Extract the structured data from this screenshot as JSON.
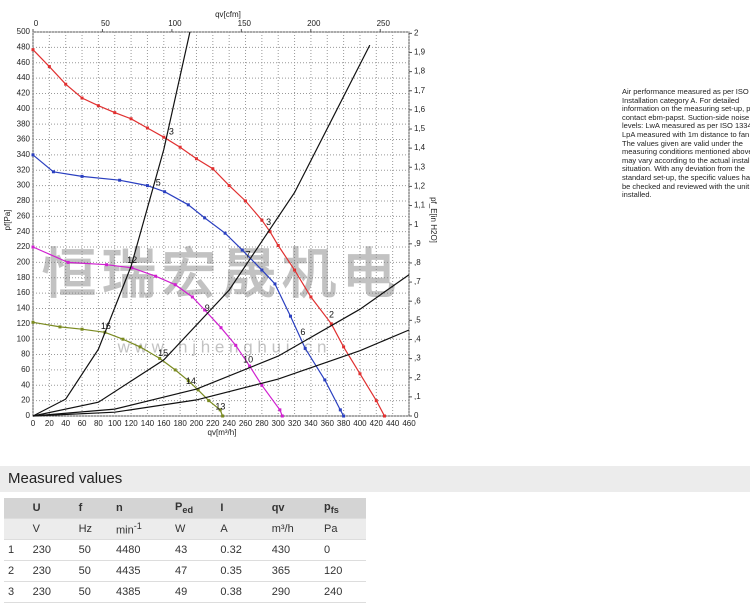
{
  "chart_data": {
    "type": "line",
    "xlabel": "qv[m³/h]",
    "ylabel": "pf[Pa]",
    "x2label": "qv[cfm]",
    "y2label": "pf_E[in H2O]",
    "xlim": [
      0,
      460
    ],
    "xticks": [
      0,
      20,
      40,
      60,
      80,
      100,
      120,
      140,
      160,
      180,
      200,
      220,
      240,
      260,
      280,
      300,
      320,
      340,
      360,
      380,
      400,
      420,
      440,
      460
    ],
    "ylim": [
      0,
      500
    ],
    "yticks": [
      0,
      20,
      40,
      60,
      80,
      100,
      120,
      140,
      160,
      180,
      200,
      220,
      240,
      260,
      280,
      300,
      320,
      340,
      360,
      380,
      400,
      420,
      440,
      460,
      480,
      500
    ],
    "x2lim": [
      0,
      270.7
    ],
    "x2ticks": [
      0,
      50,
      100,
      150,
      200,
      250
    ],
    "y2lim": [
      0,
      2.007
    ],
    "y2ticks": [
      0,
      {
        "value": 0.1,
        "label": ",1"
      },
      {
        "value": 0.2,
        "label": ",2"
      },
      {
        "value": 0.3,
        "label": ",3"
      },
      {
        "value": 0.4,
        "label": ",4"
      },
      {
        "value": 0.5,
        "label": ",5"
      },
      {
        "value": 0.6,
        "label": ",6"
      },
      {
        "value": 0.7,
        "label": ",7"
      },
      {
        "value": 0.8,
        "label": ",8"
      },
      {
        "value": 0.9,
        "label": ",9"
      },
      1,
      {
        "value": 1.1,
        "label": "1,1"
      },
      {
        "value": 1.2,
        "label": "1,2"
      },
      {
        "value": 1.3,
        "label": "1,3"
      },
      {
        "value": 1.4,
        "label": "1,4"
      },
      {
        "value": 1.5,
        "label": "1,5"
      },
      {
        "value": 1.6,
        "label": "1,6"
      },
      {
        "value": 1.7,
        "label": "1,7"
      },
      {
        "value": 1.8,
        "label": "1,8"
      },
      {
        "value": 1.9,
        "label": "1,9"
      },
      2
    ],
    "grid": true,
    "series": [
      {
        "color": "#e03030",
        "x": [
          0,
          20,
          40,
          60,
          80,
          100,
          120,
          140,
          160,
          180,
          200,
          220,
          240,
          260,
          280,
          290,
          300,
          320,
          340,
          365,
          380,
          400,
          420,
          430
        ],
        "values": [
          477,
          455,
          432,
          414,
          404,
          395,
          387,
          375,
          363,
          350,
          335,
          322,
          300,
          280,
          255,
          240,
          222,
          190,
          155,
          120,
          90,
          55,
          20,
          0
        ]
      },
      {
        "color": "#2a3fc0",
        "x": [
          0,
          25,
          60,
          106,
          140,
          161,
          190,
          210,
          235,
          256,
          280,
          296,
          315,
          333,
          357,
          376,
          380
        ],
        "values": [
          340,
          318,
          312,
          307,
          300,
          292,
          275,
          258,
          238,
          216,
          190,
          172,
          130,
          88,
          47,
          8,
          0
        ]
      },
      {
        "color": "#d020d0",
        "x": [
          0,
          43,
          90,
          121,
          150,
          174,
          195,
          210,
          230,
          248,
          265,
          280,
          302,
          305
        ],
        "values": [
          220,
          200,
          197,
          193,
          182,
          171,
          155,
          138,
          115,
          92,
          65,
          40,
          8,
          0
        ]
      },
      {
        "color": "#7a8a20",
        "x": [
          0,
          33,
          60,
          88,
          110,
          131,
          155,
          174,
          190,
          202,
          215,
          229,
          232
        ],
        "values": [
          122,
          116,
          113,
          109,
          100,
          90,
          75,
          60,
          46,
          34,
          20,
          8,
          0
        ]
      },
      {
        "color": "#111111",
        "x": [
          0,
          40,
          80,
          120,
          160,
          192
        ],
        "values": [
          0,
          22,
          87,
          195,
          347,
          500
        ]
      },
      {
        "color": "#111111",
        "x": [
          0,
          80,
          160,
          240,
          320,
          412
        ],
        "values": [
          0,
          18,
          73,
          164,
          291,
          483
        ]
      },
      {
        "color": "#111111",
        "x": [
          0,
          100,
          200,
          300,
          400,
          460
        ],
        "values": [
          0,
          9,
          35,
          78,
          139,
          184
        ]
      },
      {
        "color": "#111111",
        "x": [
          0,
          100,
          200,
          300,
          400,
          460
        ],
        "values": [
          0,
          5,
          21,
          48,
          85,
          112
        ]
      }
    ],
    "annotations": [
      {
        "text": "2",
        "x": 364,
        "y": 125
      },
      {
        "text": "3",
        "x": 287,
        "y": 245
      },
      {
        "text": "3",
        "x": 168,
        "y": 363
      },
      {
        "text": "5",
        "x": 152,
        "y": 297
      },
      {
        "text": "6",
        "x": 329,
        "y": 102
      },
      {
        "text": "7",
        "x": 262,
        "y": 203
      },
      {
        "text": "9",
        "x": 212,
        "y": 133
      },
      {
        "text": "10",
        "x": 262,
        "y": 66
      },
      {
        "text": "12",
        "x": 120,
        "y": 196
      },
      {
        "text": "13",
        "x": 228,
        "y": 5
      },
      {
        "text": "14",
        "x": 192,
        "y": 38
      },
      {
        "text": "15",
        "x": 158,
        "y": 75
      },
      {
        "text": "16",
        "x": 88,
        "y": 110
      }
    ],
    "watermark": [
      "恒瑞宏晟机电",
      "w w w . h j h e n g h u i . c n"
    ]
  },
  "note": [
    "Air performance measured as per ISO 5",
    "Installation category A. For detailed",
    "information on the measuring set-up, ple",
    "contact ebm-papst. Suction-side noise",
    "levels: LwA measured as per ISO 13347",
    "LpA measured with 1m distance to fan a",
    "The values given are valid under the",
    "measuring conditions mentioned above a",
    "may vary according to the actual installa",
    "situation. With any deviation from the",
    "standard set-up, the specific values have",
    "be checked and reviewed with the unit",
    "installed."
  ],
  "table": {
    "title": "Measured values",
    "header": [
      {
        "main": "U"
      },
      {
        "main": "f"
      },
      {
        "main": "n"
      },
      {
        "main": "P",
        "sub": "ed"
      },
      {
        "main": "I"
      },
      {
        "main": "qv"
      },
      {
        "main": "p",
        "sub": "fs"
      }
    ],
    "units": [
      {
        "main": "V"
      },
      {
        "main": "Hz"
      },
      {
        "main": "min",
        "sup": "-1"
      },
      {
        "main": "W"
      },
      {
        "main": "A"
      },
      {
        "main": "m³/h"
      },
      {
        "main": "Pa"
      }
    ],
    "rows": [
      [
        "1",
        "230",
        "50",
        "4480",
        "43",
        "0.32",
        "430",
        "0"
      ],
      [
        "2",
        "230",
        "50",
        "4435",
        "47",
        "0.35",
        "365",
        "120"
      ],
      [
        "3",
        "230",
        "50",
        "4385",
        "49",
        "0.38",
        "290",
        "240"
      ]
    ]
  }
}
